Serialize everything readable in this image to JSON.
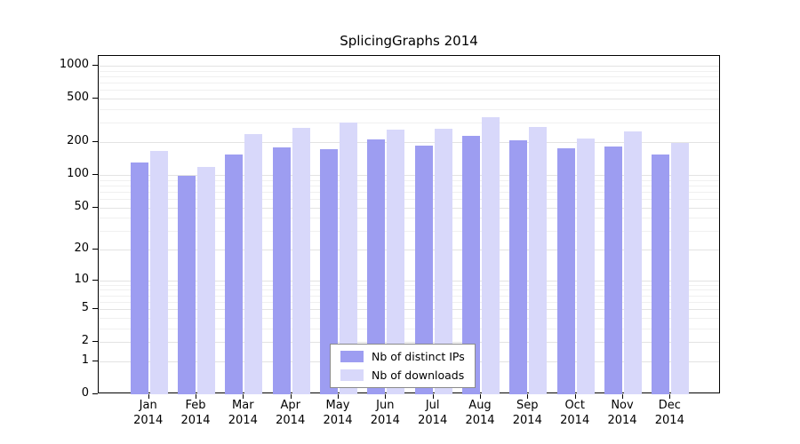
{
  "chart_data": {
    "type": "bar",
    "title": "SplicingGraphs 2014",
    "categories": [
      {
        "month": "Jan",
        "year": "2014"
      },
      {
        "month": "Feb",
        "year": "2014"
      },
      {
        "month": "Mar",
        "year": "2014"
      },
      {
        "month": "Apr",
        "year": "2014"
      },
      {
        "month": "May",
        "year": "2014"
      },
      {
        "month": "Jun",
        "year": "2014"
      },
      {
        "month": "Jul",
        "year": "2014"
      },
      {
        "month": "Aug",
        "year": "2014"
      },
      {
        "month": "Sep",
        "year": "2014"
      },
      {
        "month": "Oct",
        "year": "2014"
      },
      {
        "month": "Nov",
        "year": "2014"
      },
      {
        "month": "Dec",
        "year": "2014"
      }
    ],
    "series": [
      {
        "name": "Nb of distinct IPs",
        "color": "#9d9df1",
        "values": [
          130,
          98,
          155,
          178,
          172,
          210,
          186,
          228,
          206,
          174,
          183,
          155
        ]
      },
      {
        "name": "Nb of downloads",
        "color": "#d8d8fa",
        "values": [
          165,
          118,
          235,
          270,
          305,
          260,
          265,
          340,
          275,
          215,
          250,
          198
        ]
      }
    ],
    "y_axis": {
      "ticks": [
        0,
        1,
        2,
        5,
        10,
        20,
        50,
        100,
        200,
        500,
        1000
      ],
      "scale": "log10(value+1)",
      "max": 1000
    },
    "legend_position": "bottom-center-inside",
    "grid": "horizontal-log-minor"
  }
}
